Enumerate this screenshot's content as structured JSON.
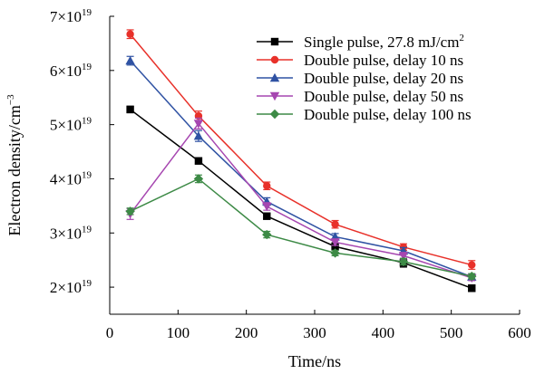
{
  "chart_data": {
    "type": "line",
    "title": "",
    "xlabel": "Time/ns",
    "ylabel": "Electron density/cm",
    "ylabel_sup": "−3",
    "xlim": [
      0,
      600
    ],
    "ylim": [
      1.5e+19,
      7e+19
    ],
    "x_ticks": [
      0,
      100,
      200,
      300,
      400,
      500,
      600
    ],
    "y_ticks": [
      {
        "value": 2e+19,
        "mantissa": "2×10",
        "exp": "19"
      },
      {
        "value": 3e+19,
        "mantissa": "3×10",
        "exp": "19"
      },
      {
        "value": 4e+19,
        "mantissa": "4×10",
        "exp": "19"
      },
      {
        "value": 5e+19,
        "mantissa": "5×10",
        "exp": "19"
      },
      {
        "value": 6e+19,
        "mantissa": "6×10",
        "exp": "19"
      },
      {
        "value": 7e+19,
        "mantissa": "7×10",
        "exp": "19"
      }
    ],
    "grid": false,
    "legend_position": "top-right",
    "x": [
      30,
      130,
      230,
      330,
      430,
      530
    ],
    "series": [
      {
        "name": "Single pulse, 27.8 mJ/cm",
        "name_sup": "2",
        "color": "#000000",
        "marker": "square",
        "values": [
          5.28e+19,
          4.33e+19,
          3.31e+19,
          2.75e+19,
          2.45e+19,
          1.98e+19
        ],
        "errors": [
          6e+17,
          5e+17,
          5e+17,
          7e+17,
          8e+17,
          6e+17
        ]
      },
      {
        "name": "Double pulse, delay 10 ns",
        "color": "#e8312a",
        "marker": "circle",
        "values": [
          6.67e+19,
          5.16e+19,
          3.87e+19,
          3.16e+19,
          2.74e+19,
          2.41e+19
        ],
        "errors": [
          8e+17,
          9e+17,
          7e+17,
          7e+17,
          6e+17,
          8e+17
        ]
      },
      {
        "name": "Double pulse, delay 20 ns",
        "color": "#2f52a3",
        "marker": "triangle-up",
        "values": [
          6.18e+19,
          4.79e+19,
          3.58e+19,
          2.93e+19,
          2.67e+19,
          2.19e+19
        ],
        "errors": [
          8e+17,
          1e+18,
          7e+17,
          6e+17,
          6e+17,
          5e+17
        ]
      },
      {
        "name": "Double pulse, delay 50 ns",
        "color": "#a646b0",
        "marker": "triangle-down",
        "values": [
          3.35e+19,
          5.02e+19,
          3.49e+19,
          2.83e+19,
          2.58e+19,
          2.17e+19
        ],
        "errors": [
          1e+18,
          1e+18,
          7e+17,
          6e+17,
          6e+17,
          5e+17
        ]
      },
      {
        "name": "Double pulse, delay 100 ns",
        "color": "#3d8a46",
        "marker": "diamond",
        "values": [
          3.4e+19,
          4e+19,
          2.97e+19,
          2.63e+19,
          2.47e+19,
          2.2e+19
        ],
        "errors": [
          6e+17,
          7e+17,
          6e+17,
          5e+17,
          6e+17,
          5e+17
        ]
      }
    ]
  }
}
